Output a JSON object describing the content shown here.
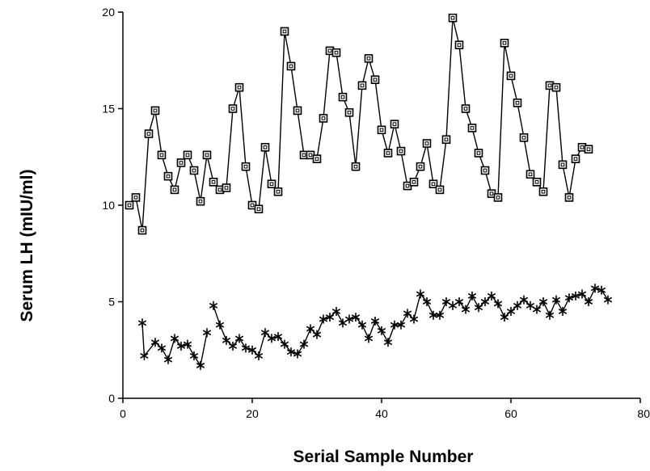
{
  "chart_data": {
    "type": "line",
    "title": "",
    "xlabel": "Serial Sample Number",
    "ylabel": "Serum LH (mIU/ml)",
    "xlim": [
      0,
      80
    ],
    "ylim": [
      0,
      20
    ],
    "x_ticks": [
      0,
      20,
      40,
      60,
      80
    ],
    "y_ticks": [
      0,
      5,
      10,
      15,
      20
    ],
    "grid": false,
    "legend": "none",
    "series": [
      {
        "marker": "square",
        "color": "#000000",
        "segments": [
          [
            [
              1,
              10.0
            ],
            [
              2,
              10.4
            ],
            [
              3,
              8.7
            ]
          ],
          [
            [
              3,
              8.7
            ],
            [
              4,
              13.7
            ],
            [
              5,
              14.9
            ],
            [
              6,
              12.6
            ],
            [
              7,
              11.5
            ],
            [
              8,
              10.8
            ],
            [
              9,
              12.2
            ],
            [
              10,
              12.6
            ],
            [
              11,
              11.8
            ],
            [
              12,
              10.2
            ],
            [
              13,
              12.6
            ],
            [
              14,
              11.2
            ],
            [
              15,
              10.8
            ],
            [
              16,
              10.9
            ],
            [
              17,
              15.0
            ],
            [
              18,
              16.1
            ],
            [
              19,
              12.0
            ],
            [
              20,
              10.0
            ],
            [
              21,
              9.8
            ],
            [
              22,
              13.0
            ],
            [
              23,
              11.1
            ],
            [
              24,
              10.7
            ],
            [
              25,
              19.0
            ],
            [
              26,
              17.2
            ],
            [
              27,
              14.9
            ],
            [
              28,
              12.6
            ],
            [
              29,
              12.6
            ],
            [
              30,
              12.4
            ],
            [
              31,
              14.5
            ],
            [
              32,
              18.0
            ],
            [
              33,
              17.9
            ],
            [
              34,
              15.6
            ],
            [
              35,
              14.8
            ],
            [
              36,
              12.0
            ],
            [
              37,
              16.2
            ],
            [
              38,
              17.6
            ],
            [
              39,
              16.5
            ],
            [
              40,
              13.9
            ],
            [
              41,
              12.7
            ],
            [
              42,
              14.2
            ],
            [
              43,
              12.8
            ],
            [
              44,
              11.0
            ],
            [
              45,
              11.2
            ],
            [
              46,
              12.0
            ],
            [
              47,
              13.2
            ],
            [
              48,
              11.1
            ],
            [
              49,
              10.8
            ],
            [
              50,
              13.4
            ],
            [
              51,
              19.7
            ],
            [
              52,
              18.3
            ],
            [
              53,
              15.0
            ],
            [
              54,
              14.0
            ],
            [
              55,
              12.7
            ],
            [
              56,
              11.8
            ],
            [
              57,
              10.6
            ],
            [
              58,
              10.4
            ],
            [
              59,
              18.4
            ],
            [
              60,
              16.7
            ],
            [
              61,
              15.3
            ],
            [
              62,
              13.5
            ],
            [
              63,
              11.6
            ],
            [
              64,
              11.2
            ],
            [
              65,
              10.7
            ],
            [
              66,
              16.2
            ],
            [
              67,
              16.1
            ],
            [
              68,
              12.1
            ],
            [
              69,
              10.4
            ],
            [
              70,
              12.4
            ],
            [
              71,
              13.0
            ],
            [
              72,
              12.9
            ]
          ]
        ]
      },
      {
        "marker": "asterisk",
        "color": "#000000",
        "segments": [
          [
            [
              3,
              3.9
            ],
            [
              3.3,
              2.2
            ],
            [
              5,
              2.9
            ],
            [
              6,
              2.6
            ],
            [
              7,
              2.0
            ],
            [
              8,
              3.1
            ],
            [
              9,
              2.7
            ],
            [
              10,
              2.8
            ],
            [
              11,
              2.2
            ],
            [
              12,
              1.7
            ],
            [
              13,
              3.4
            ]
          ],
          [
            [
              14,
              4.8
            ],
            [
              15,
              3.8
            ],
            [
              16,
              3.0
            ],
            [
              17,
              2.7
            ],
            [
              18,
              3.1
            ],
            [
              19,
              2.6
            ],
            [
              20,
              2.5
            ],
            [
              21,
              2.2
            ],
            [
              22,
              3.4
            ],
            [
              23,
              3.1
            ],
            [
              24,
              3.2
            ],
            [
              25,
              2.8
            ],
            [
              26,
              2.4
            ],
            [
              27,
              2.3
            ],
            [
              28,
              2.8
            ],
            [
              29,
              3.6
            ],
            [
              30,
              3.3
            ],
            [
              31,
              4.1
            ],
            [
              32,
              4.2
            ],
            [
              33,
              4.5
            ],
            [
              34,
              3.9
            ],
            [
              35,
              4.1
            ],
            [
              36,
              4.2
            ],
            [
              37,
              3.8
            ],
            [
              38,
              3.1
            ],
            [
              39,
              4.0
            ],
            [
              40,
              3.5
            ],
            [
              41,
              2.9
            ],
            [
              42,
              3.8
            ],
            [
              43,
              3.8
            ],
            [
              44,
              4.4
            ],
            [
              45,
              4.1
            ],
            [
              46,
              5.4
            ],
            [
              47,
              5.0
            ],
            [
              48,
              4.3
            ],
            [
              49,
              4.3
            ],
            [
              50,
              5.0
            ],
            [
              51,
              4.8
            ],
            [
              52,
              5.0
            ],
            [
              53,
              4.6
            ],
            [
              54,
              5.3
            ],
            [
              55,
              4.7
            ],
            [
              56,
              5.0
            ],
            [
              57,
              5.3
            ],
            [
              58,
              4.9
            ],
            [
              59,
              4.2
            ],
            [
              60,
              4.5
            ],
            [
              61,
              4.8
            ],
            [
              62,
              5.1
            ],
            [
              63,
              4.8
            ],
            [
              64,
              4.6
            ],
            [
              65,
              5.0
            ],
            [
              66,
              4.3
            ],
            [
              67,
              5.1
            ],
            [
              68,
              4.5
            ],
            [
              69,
              5.2
            ],
            [
              70,
              5.3
            ],
            [
              71,
              5.4
            ],
            [
              72,
              5.0
            ],
            [
              73,
              5.7
            ],
            [
              74,
              5.6
            ],
            [
              75,
              5.1
            ]
          ]
        ]
      }
    ]
  }
}
